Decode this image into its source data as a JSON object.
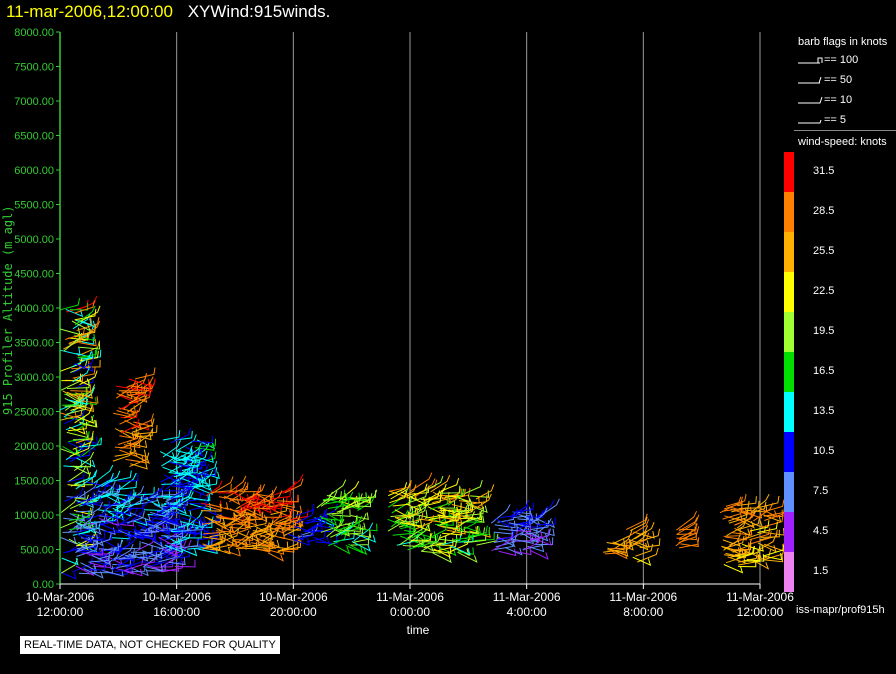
{
  "header": {
    "timestamp": "11-mar-2006,12:00:00",
    "title": "XYWind:915winds."
  },
  "chart_data": {
    "type": "scatter",
    "title": "XYWind:915winds.",
    "ylabel": "915 Profiler Altitude (m agl)",
    "xlabel": "time",
    "ylim": [
      0,
      8000
    ],
    "y_ticks": [
      "0.00",
      "500.00",
      "1000.00",
      "1500.00",
      "2000.00",
      "2500.00",
      "3000.00",
      "3500.00",
      "4000.00",
      "4500.00",
      "5000.00",
      "5500.00",
      "6000.00",
      "6500.00",
      "7000.00",
      "7500.00",
      "8000.00"
    ],
    "x_ticks": [
      {
        "date": "10-Mar-2006",
        "time": "12:00:00",
        "hour": 0
      },
      {
        "date": "10-Mar-2006",
        "time": "16:00:00",
        "hour": 4
      },
      {
        "date": "10-Mar-2006",
        "time": "20:00:00",
        "hour": 8
      },
      {
        "date": "11-Mar-2006",
        "time": "0:00:00",
        "hour": 12
      },
      {
        "date": "11-Mar-2006",
        "time": "4:00:00",
        "hour": 16
      },
      {
        "date": "11-Mar-2006",
        "time": "8:00:00",
        "hour": 20
      },
      {
        "date": "11-Mar-2006",
        "time": "12:00:00",
        "hour": 24
      }
    ],
    "xlim_hours": [
      0,
      24
    ],
    "grid": "vertical",
    "color_scale": {
      "title": "wind-speed: knots",
      "bins": [
        {
          "label": "31.5",
          "color": "#ff0000"
        },
        {
          "label": "28.5",
          "color": "#ff8000"
        },
        {
          "label": "25.5",
          "color": "#ffb000"
        },
        {
          "label": "22.5",
          "color": "#ffff00"
        },
        {
          "label": "19.5",
          "color": "#a0ff30"
        },
        {
          "label": "16.5",
          "color": "#00e000"
        },
        {
          "label": "13.5",
          "color": "#00ffff"
        },
        {
          "label": "10.5",
          "color": "#0000ff"
        },
        {
          "label": "7.5",
          "color": "#6090ff"
        },
        {
          "label": "4.5",
          "color": "#a020ff"
        },
        {
          "label": "1.5",
          "color": "#ee82ee"
        }
      ]
    },
    "clusters": [
      {
        "hour_start": 0.0,
        "hour_end": 0.7,
        "alt_min": 150,
        "alt_max": 4000,
        "speed_low": 4,
        "speed_high": 32
      },
      {
        "hour_start": 0.5,
        "hour_end": 2.0,
        "alt_min": 150,
        "alt_max": 1500,
        "speed_low": 3,
        "speed_high": 16
      },
      {
        "hour_start": 1.8,
        "hour_end": 2.6,
        "alt_min": 1700,
        "alt_max": 3000,
        "speed_low": 25,
        "speed_high": 32
      },
      {
        "hour_start": 2.0,
        "hour_end": 4.0,
        "alt_min": 150,
        "alt_max": 1300,
        "speed_low": 3,
        "speed_high": 14
      },
      {
        "hour_start": 3.4,
        "hour_end": 4.8,
        "alt_min": 500,
        "alt_max": 2100,
        "speed_low": 8,
        "speed_high": 16
      },
      {
        "hour_start": 4.8,
        "hour_end": 7.8,
        "alt_min": 450,
        "alt_max": 1350,
        "speed_low": 24,
        "speed_high": 32
      },
      {
        "hour_start": 7.8,
        "hour_end": 8.8,
        "alt_min": 600,
        "alt_max": 1000,
        "speed_low": 8,
        "speed_high": 13
      },
      {
        "hour_start": 8.8,
        "hour_end": 10.2,
        "alt_min": 550,
        "alt_max": 1300,
        "speed_low": 13,
        "speed_high": 23
      },
      {
        "hour_start": 11.2,
        "hour_end": 14.3,
        "alt_min": 450,
        "alt_max": 1350,
        "speed_low": 13,
        "speed_high": 28
      },
      {
        "hour_start": 14.7,
        "hour_end": 16.5,
        "alt_min": 450,
        "alt_max": 1050,
        "speed_low": 4,
        "speed_high": 11
      },
      {
        "hour_start": 18.6,
        "hour_end": 19.1,
        "alt_min": 400,
        "alt_max": 650,
        "speed_low": 25,
        "speed_high": 29
      },
      {
        "hour_start": 19.4,
        "hour_end": 19.9,
        "alt_min": 250,
        "alt_max": 800,
        "speed_low": 22,
        "speed_high": 30
      },
      {
        "hour_start": 21.1,
        "hour_end": 21.3,
        "alt_min": 500,
        "alt_max": 800,
        "speed_low": 26,
        "speed_high": 29
      },
      {
        "hour_start": 22.6,
        "hour_end": 24.2,
        "alt_min": 250,
        "alt_max": 1150,
        "speed_low": 22,
        "speed_high": 30
      }
    ]
  },
  "legend_flags": {
    "title": "barb flags in knots",
    "items": [
      {
        "label": "== 100"
      },
      {
        "label": "== 50"
      },
      {
        "label": "== 10"
      },
      {
        "label": "== 5"
      }
    ]
  },
  "footer": {
    "path": "iss-mapr/prof915h",
    "disclaimer": "REAL-TIME DATA, NOT CHECKED FOR QUALITY"
  }
}
